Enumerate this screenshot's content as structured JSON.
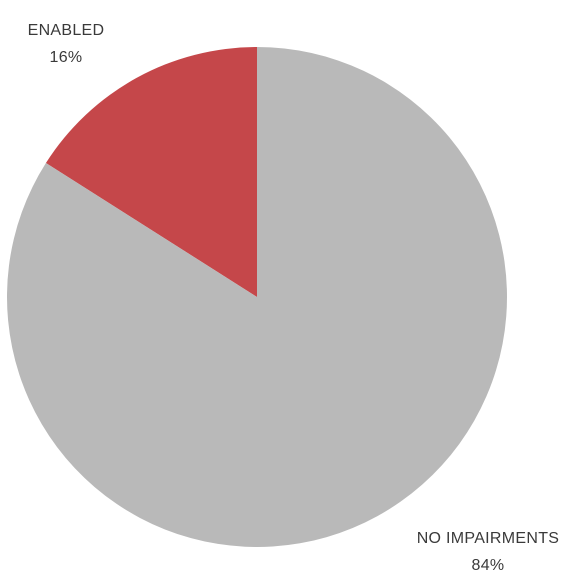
{
  "chart_data": {
    "type": "pie",
    "start_angle_deg": 0,
    "direction": "counterclockwise",
    "slices": [
      {
        "label": "ENABLED",
        "value": 16,
        "value_label": "16%",
        "color": "#c5474a"
      },
      {
        "label": "NO IMPAIRMENTS",
        "value": 84,
        "value_label": "84%",
        "color": "#b9b9b9"
      }
    ],
    "legend": "none"
  }
}
